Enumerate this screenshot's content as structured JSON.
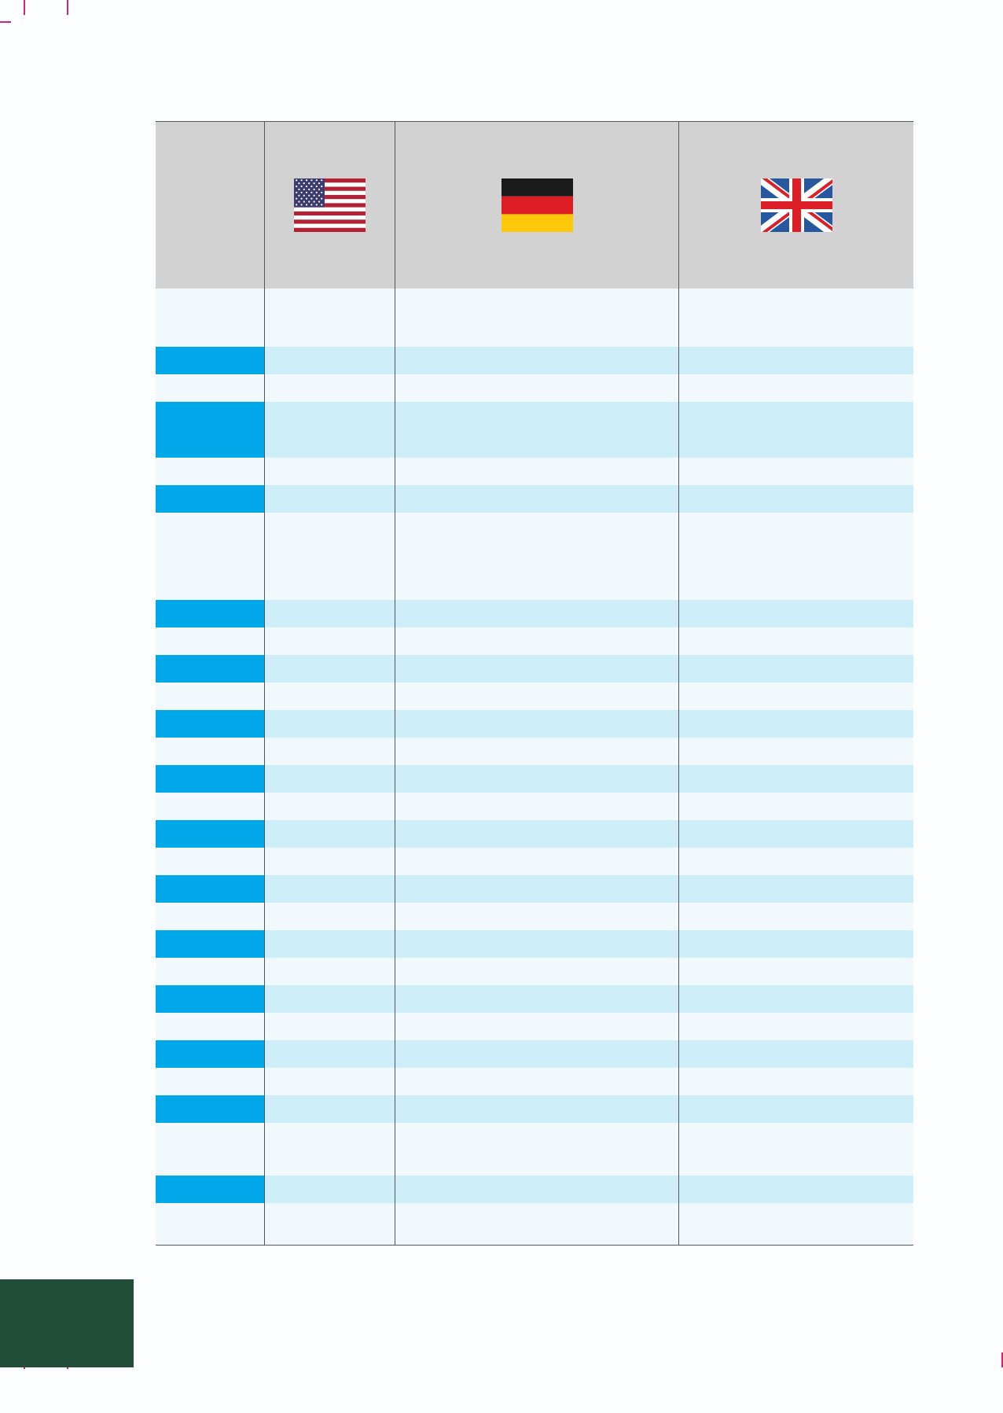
{
  "table": {
    "header": {
      "flags": [
        {
          "icon": "us-flag-icon",
          "colors": [
            "#b22234",
            "#ffffff",
            "#3c3b6e"
          ]
        },
        {
          "icon": "germany-flag-icon",
          "colors": [
            "#1a1a1a",
            "#dd1d24",
            "#fdc80a"
          ]
        },
        {
          "icon": "uk-flag-icon",
          "colors": [
            "#26579f",
            "#ffffff",
            "#dc1f27"
          ]
        }
      ]
    },
    "rows": [
      {
        "highlight": false,
        "cells": [
          "",
          "",
          "",
          ""
        ]
      },
      {
        "highlight": true,
        "cells": [
          "",
          "",
          "",
          ""
        ]
      },
      {
        "highlight": false,
        "cells": [
          "",
          "",
          "",
          ""
        ]
      },
      {
        "highlight": true,
        "cells": [
          "",
          "",
          "",
          ""
        ]
      },
      {
        "highlight": false,
        "cells": [
          "",
          "",
          "",
          ""
        ]
      },
      {
        "highlight": true,
        "cells": [
          "",
          "",
          "",
          ""
        ]
      },
      {
        "highlight": false,
        "cells": [
          "",
          "",
          "",
          ""
        ]
      },
      {
        "highlight": true,
        "cells": [
          "",
          "",
          "",
          ""
        ]
      },
      {
        "highlight": false,
        "cells": [
          "",
          "",
          "",
          ""
        ]
      },
      {
        "highlight": true,
        "cells": [
          "",
          "",
          "",
          ""
        ]
      },
      {
        "highlight": false,
        "cells": [
          "",
          "",
          "",
          ""
        ]
      },
      {
        "highlight": true,
        "cells": [
          "",
          "",
          "",
          ""
        ]
      },
      {
        "highlight": false,
        "cells": [
          "",
          "",
          "",
          ""
        ]
      },
      {
        "highlight": true,
        "cells": [
          "",
          "",
          "",
          ""
        ]
      },
      {
        "highlight": false,
        "cells": [
          "",
          "",
          "",
          ""
        ]
      },
      {
        "highlight": true,
        "cells": [
          "",
          "",
          "",
          ""
        ]
      },
      {
        "highlight": false,
        "cells": [
          "",
          "",
          "",
          ""
        ]
      },
      {
        "highlight": true,
        "cells": [
          "",
          "",
          "",
          ""
        ]
      },
      {
        "highlight": false,
        "cells": [
          "",
          "",
          "",
          ""
        ]
      },
      {
        "highlight": true,
        "cells": [
          "",
          "",
          "",
          ""
        ]
      },
      {
        "highlight": false,
        "cells": [
          "",
          "",
          "",
          ""
        ]
      },
      {
        "highlight": true,
        "cells": [
          "",
          "",
          "",
          ""
        ]
      },
      {
        "highlight": false,
        "cells": [
          "",
          "",
          "",
          ""
        ]
      },
      {
        "highlight": true,
        "cells": [
          "",
          "",
          "",
          ""
        ]
      },
      {
        "highlight": false,
        "cells": [
          "",
          "",
          "",
          ""
        ]
      },
      {
        "highlight": true,
        "cells": [
          "",
          "",
          "",
          ""
        ]
      },
      {
        "highlight": false,
        "cells": [
          "",
          "",
          "",
          ""
        ]
      },
      {
        "highlight": true,
        "cells": [
          "",
          "",
          "",
          ""
        ]
      },
      {
        "highlight": false,
        "cells": [
          "",
          "",
          "",
          ""
        ]
      }
    ]
  },
  "colors": {
    "header_bg": "#d2d2d2",
    "key_highlight": "#00a8e9",
    "value_highlight": "#cdeef9",
    "row_plain": "#f1f9fd",
    "page_tab": "#214e38",
    "crop_marks": "#d6217e"
  }
}
